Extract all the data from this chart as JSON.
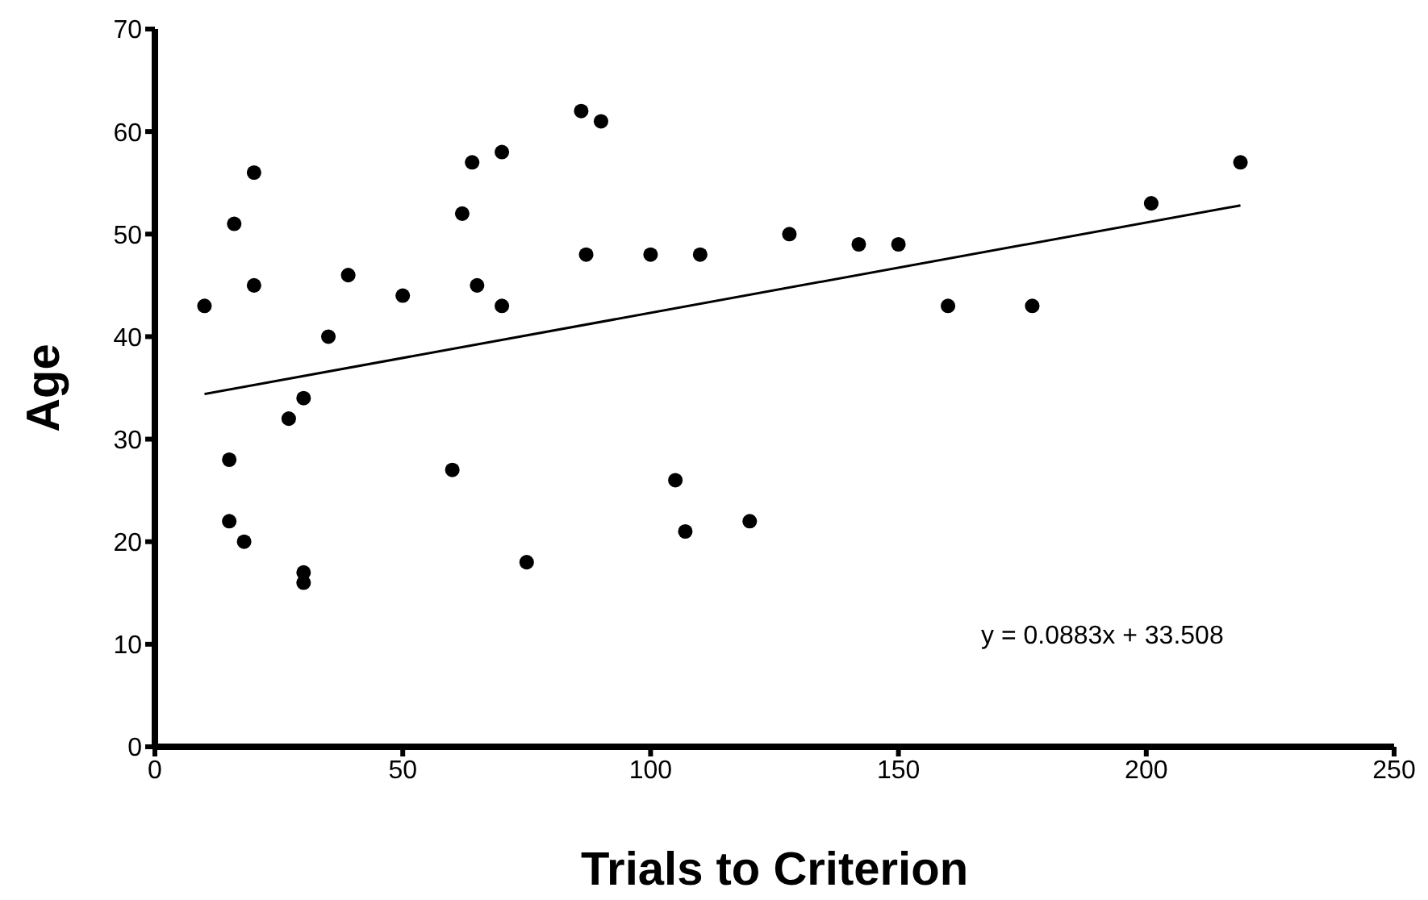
{
  "chart_data": {
    "type": "scatter",
    "xlabel": "Trials to Criterion",
    "ylabel": "Age",
    "xlim": [
      0,
      250
    ],
    "xticks": [
      0,
      50,
      100,
      150,
      200,
      250
    ],
    "ylim": [
      0,
      70
    ],
    "yticks": [
      0,
      10,
      20,
      30,
      40,
      50,
      60,
      70
    ],
    "grid": false,
    "series": [
      {
        "color": "#000000",
        "marker": "circle",
        "x": [
          10,
          15,
          15,
          16,
          18,
          20,
          20,
          27,
          30,
          30,
          30,
          35,
          39,
          50,
          60,
          62,
          64,
          65,
          70,
          70,
          75,
          86,
          87,
          90,
          100,
          105,
          107,
          110,
          120,
          128,
          142,
          150,
          160,
          177,
          201,
          219
        ],
        "values": [
          43,
          28,
          22,
          51,
          20,
          56,
          45,
          32,
          34,
          17,
          16,
          40,
          46,
          44,
          27,
          52,
          57,
          45,
          58,
          43,
          18,
          62,
          48,
          61,
          48,
          26,
          21,
          48,
          22,
          50,
          49,
          49,
          43,
          43,
          53,
          57
        ]
      },
      {
        "type": "line",
        "color": "#000000",
        "marker": "none",
        "x": [
          10,
          219
        ],
        "values": [
          34.4,
          52.8
        ]
      }
    ],
    "annotations": [
      "y = 0.0883x + 33.508"
    ]
  }
}
